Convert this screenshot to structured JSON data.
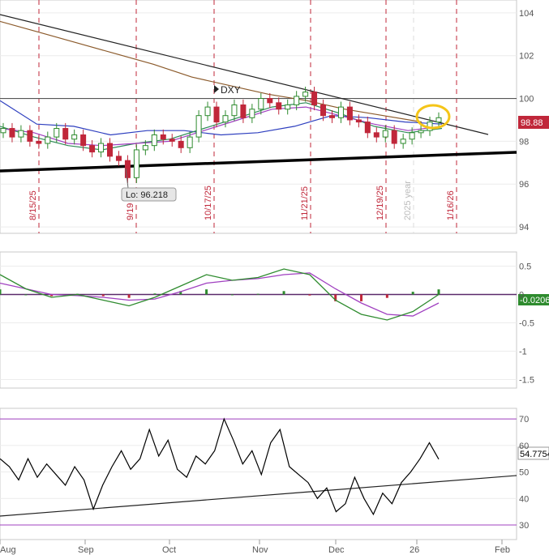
{
  "chart_data": {
    "type": "candlestick",
    "symbol_label": "DXY",
    "x_month_labels": [
      "Aug",
      "Sep",
      "Oct",
      "Nov",
      "Dec",
      "26",
      "Feb"
    ],
    "event_markers": [
      "8/15/25",
      "9/19",
      "10/17/25",
      "11/21/25",
      "12/19/25",
      "2025 year",
      "1/16/26"
    ],
    "price_panel": {
      "y_ticks": [
        "104",
        "102",
        "100",
        "98",
        "96",
        "94"
      ],
      "ylim": [
        93.7,
        104.6
      ],
      "last_price": "98.88",
      "low_callout": "Lo: 96.218",
      "low_value": 96.218,
      "horizontal_level": 100.0,
      "close_series": [
        98.6,
        98.2,
        98.5,
        98.0,
        97.9,
        98.2,
        98.6,
        98.1,
        98.3,
        97.8,
        97.5,
        97.9,
        97.3,
        97.1,
        96.3,
        97.6,
        97.8,
        98.3,
        98.1,
        98.0,
        97.7,
        98.2,
        99.2,
        99.6,
        98.9,
        99.2,
        99.7,
        99.1,
        99.5,
        100.0,
        99.8,
        99.5,
        99.7,
        100.1,
        100.3,
        99.7,
        99.2,
        99.1,
        99.6,
        99.0,
        98.9,
        98.4,
        98.2,
        98.5,
        97.9,
        98.1,
        98.4,
        98.5,
        98.9,
        99.1
      ],
      "moving_averages": [
        {
          "color": "#8B5A2B",
          "values": [
            103.6,
            103.1,
            102.6,
            102.1,
            101.6,
            101.0,
            100.6,
            100.2,
            99.9,
            99.5,
            99.2,
            98.9
          ]
        },
        {
          "color": "#2E3FBF",
          "values": [
            99.9,
            98.8,
            98.7,
            98.3,
            98.5,
            98.5,
            98.3,
            98.4,
            98.7,
            99.2,
            99.1,
            98.9,
            98.8
          ]
        },
        {
          "color": "#2E8B57",
          "values": [
            98.7,
            98.2,
            97.8,
            97.6,
            97.9,
            98.1,
            98.6,
            99.1,
            99.6,
            99.8,
            99.3,
            98.7,
            98.4,
            98.6
          ]
        },
        {
          "color": "#A040C0",
          "values": [
            98.6,
            98.4,
            97.9,
            97.8,
            97.9,
            98.0,
            98.5,
            99.0,
            99.5,
            99.6,
            99.2,
            98.8,
            98.5,
            98.7
          ]
        }
      ]
    },
    "macd_panel": {
      "y_ticks": [
        "0.5",
        "0",
        "-0.5",
        "-1",
        "-1.5"
      ],
      "ylim": [
        -1.65,
        0.75
      ],
      "last_value": "-0.0206",
      "macd": [
        0.35,
        0.1,
        -0.05,
        0.0,
        -0.1,
        -0.2,
        -0.05,
        0.15,
        0.35,
        0.25,
        0.3,
        0.45,
        0.35,
        -0.1,
        -0.35,
        -0.45,
        -0.3,
        0.0
      ],
      "signal": [
        0.2,
        0.1,
        0.0,
        -0.02,
        -0.05,
        -0.1,
        -0.08,
        0.05,
        0.2,
        0.25,
        0.28,
        0.35,
        0.38,
        0.1,
        -0.15,
        -0.35,
        -0.38,
        -0.15
      ]
    },
    "rsi_panel": {
      "y_ticks": [
        "70",
        "60",
        "50",
        "40",
        "30"
      ],
      "ylim": [
        24.5,
        74
      ],
      "last_value": "54.7754",
      "reference_levels": [
        70,
        30
      ],
      "values": [
        55,
        52,
        47,
        55,
        48,
        53,
        49,
        45,
        52,
        47,
        36,
        45,
        52,
        58,
        51,
        55,
        66,
        56,
        62,
        51,
        48,
        56,
        53,
        58,
        70,
        62,
        53,
        58,
        49,
        61,
        66,
        52,
        49,
        46,
        40,
        44,
        35,
        38,
        48,
        40,
        34,
        42,
        38,
        46,
        50,
        55,
        61,
        54.8
      ]
    }
  }
}
